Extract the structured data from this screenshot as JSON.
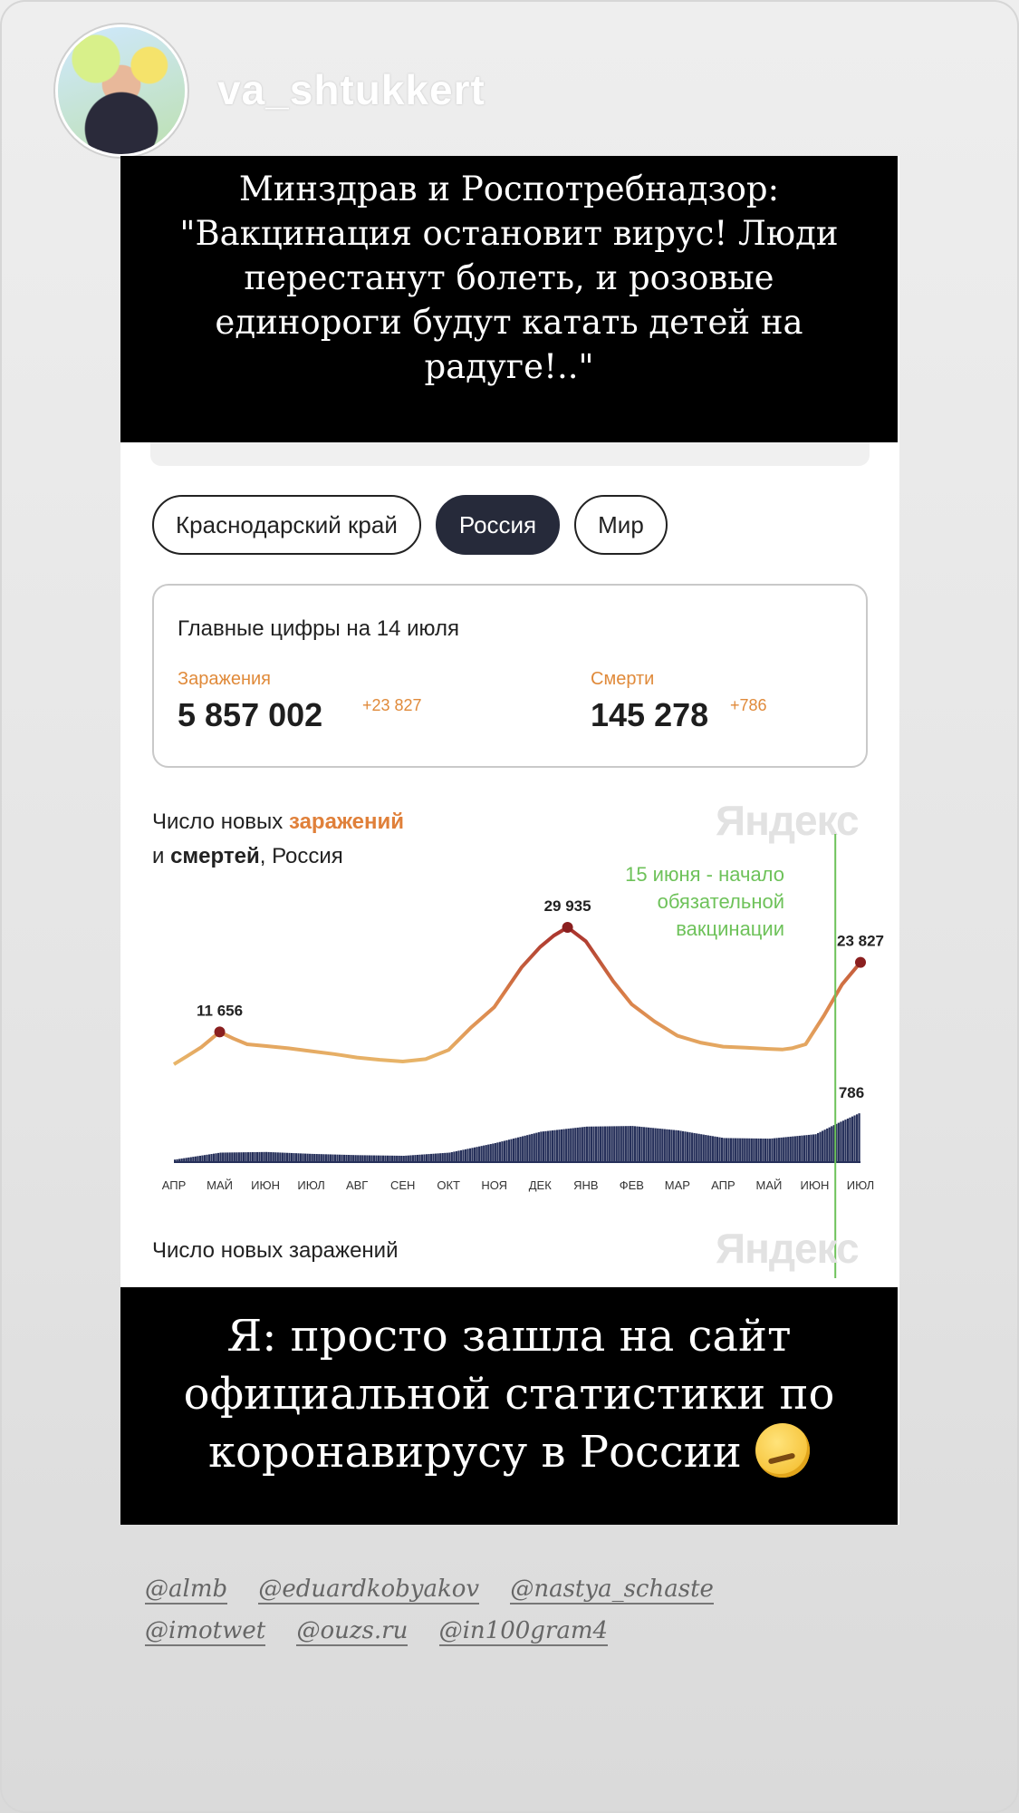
{
  "story": {
    "username": "va_shtukkert",
    "caption_top": [
      "Минздрав и Роспотребнадзор:",
      "\"Вакцинация остановит вирус! Люди",
      "перестанут болеть, и розовые",
      "единороги будут катать детей на",
      "радуге!..\""
    ],
    "caption_bottom": [
      "Я: просто зашла на сайт",
      "официальной статистики по",
      "коронавирусу в России"
    ],
    "mentions_row1": [
      "@almb",
      "@eduardkobyakov",
      "@nastya_schaste"
    ],
    "mentions_row2": [
      "@imotwet",
      "@ouzs.ru",
      "@in100gram4"
    ]
  },
  "page": {
    "tabs": [
      {
        "label": "Краснодарский край",
        "active": false
      },
      {
        "label": "Россия",
        "active": true
      },
      {
        "label": "Мир",
        "active": false
      }
    ],
    "stats": {
      "title": "Главные цифры на 14 июля",
      "infections_label": "Заражения",
      "infections_value": "5 857 002",
      "infections_delta": "+23 827",
      "deaths_label": "Смерти",
      "deaths_value": "145 278",
      "deaths_delta": "+786"
    },
    "chart_title": {
      "part1": "Число новых ",
      "part2": "заражений",
      "part3": "и ",
      "part4": "смертей",
      "part5": ", Россия"
    },
    "watermark": "Яндекс",
    "annotation": [
      "15 июня - начало",
      "обязательной",
      "вакцинации"
    ],
    "second_chart_title": "Число новых заражений"
  },
  "chart_data": {
    "type": "line",
    "title": "Число новых заражений и смертей, Россия",
    "months": [
      "АПР",
      "МАЙ",
      "ИЮН",
      "ИЮЛ",
      "АВГ",
      "СЕН",
      "ОКТ",
      "НОЯ",
      "ДЕК",
      "ЯНВ",
      "ФЕВ",
      "МАР",
      "АПР",
      "МАЙ",
      "ИЮН",
      "ИЮЛ"
    ],
    "series": [
      {
        "name": "заражений",
        "color": "#c8553a",
        "x": [
          0,
          0.3,
          0.6,
          1.0,
          1.3,
          1.6,
          2.0,
          2.5,
          3.0,
          3.5,
          4.0,
          4.5,
          5.0,
          5.5,
          6.0,
          6.5,
          7.0,
          7.3,
          7.6,
          8.0,
          8.3,
          8.6,
          9.0,
          9.3,
          9.6,
          10.0,
          10.5,
          11.0,
          11.5,
          12.0,
          12.5,
          13.0,
          13.3,
          13.5,
          13.8,
          14.2,
          14.6,
          15.0
        ],
        "values": [
          6000,
          7500,
          9000,
          11656,
          10500,
          9500,
          9200,
          8800,
          8300,
          7800,
          7200,
          6800,
          6500,
          6900,
          8500,
          12500,
          16000,
          19500,
          23000,
          26500,
          28500,
          29935,
          27500,
          24000,
          20500,
          16500,
          13500,
          11000,
          9800,
          9100,
          8900,
          8700,
          8600,
          8800,
          9500,
          14500,
          20000,
          23827
        ]
      },
      {
        "name": "смертей",
        "color": "#26305a",
        "x": [
          0,
          1,
          2,
          3,
          4,
          5,
          6,
          7,
          8,
          9,
          10,
          11,
          12,
          13,
          14,
          14.5,
          15
        ],
        "values": [
          40,
          150,
          160,
          130,
          110,
          100,
          150,
          300,
          480,
          560,
          570,
          500,
          380,
          370,
          440,
          620,
          786
        ]
      }
    ],
    "labels": [
      {
        "text": "11 656",
        "series": "заражений",
        "x": 1.0,
        "value": 11656
      },
      {
        "text": "29 935",
        "series": "заражений",
        "x": 8.6,
        "value": 29935
      },
      {
        "text": "23 827",
        "series": "заражений",
        "x": 15.0,
        "value": 23827
      },
      {
        "text": "786",
        "series": "смертей",
        "x": 15.0,
        "value": 786
      }
    ],
    "marker": {
      "label": "15 июня - начало обязательной вакцинации",
      "x": 14.45
    },
    "ylim_infections": [
      0,
      32000
    ],
    "ylim_deaths": [
      0,
      800
    ]
  }
}
